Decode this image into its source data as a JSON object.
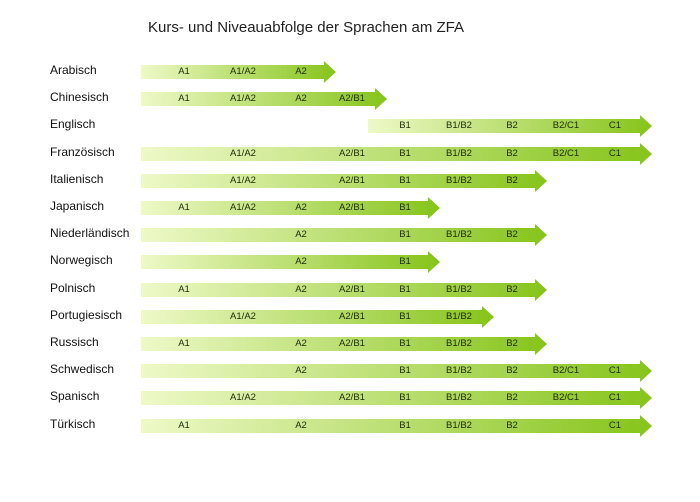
{
  "title": "Kurs- und Niveauabfolge der Sprachen am ZFA",
  "colors": {
    "arrow_light": "#eef9c8",
    "arrow_dark": "#86c41a",
    "text": "#1e2a0a"
  },
  "columns": [
    "A1",
    "A1/A2",
    "A2",
    "A2/B1",
    "B1",
    "B1/B2",
    "B2",
    "B2/C1",
    "C1"
  ],
  "languages": [
    {
      "name": "Arabisch",
      "levels": [
        "A1",
        "A1/A2",
        "A2"
      ]
    },
    {
      "name": "Chinesisch",
      "levels": [
        "A1",
        "A1/A2",
        "A2",
        "A2/B1"
      ]
    },
    {
      "name": "Englisch",
      "levels": [
        "B1",
        "B1/B2",
        "B2",
        "B2/C1",
        "C1"
      ]
    },
    {
      "name": "Französisch",
      "levels": [
        "A1/A2",
        "A2/B1",
        "B1",
        "B1/B2",
        "B2",
        "B2/C1",
        "C1"
      ]
    },
    {
      "name": "Italienisch",
      "levels": [
        "A1/A2",
        "A2/B1",
        "B1",
        "B1/B2",
        "B2"
      ]
    },
    {
      "name": "Japanisch",
      "levels": [
        "A1",
        "A1/A2",
        "A2",
        "A2/B1",
        "B1"
      ]
    },
    {
      "name": "Niederländisch",
      "levels": [
        "A2",
        "B1",
        "B1/B2",
        "B2"
      ]
    },
    {
      "name": "Norwegisch",
      "levels": [
        "A2",
        "B1"
      ]
    },
    {
      "name": "Polnisch",
      "levels": [
        "A1",
        "A2",
        "A2/B1",
        "B1",
        "B1/B2",
        "B2"
      ]
    },
    {
      "name": "Portugiesisch",
      "levels": [
        "A1/A2",
        "A2/B1",
        "B1",
        "B1/B2"
      ]
    },
    {
      "name": "Russisch",
      "levels": [
        "A1",
        "A2",
        "A2/B1",
        "B1",
        "B1/B2",
        "B2"
      ]
    },
    {
      "name": "Schwedisch",
      "levels": [
        "A2",
        "B1",
        "B1/B2",
        "B2",
        "B2/C1",
        "C1"
      ]
    },
    {
      "name": "Spanisch",
      "levels": [
        "A1/A2",
        "A2/B1",
        "B1",
        "B1/B2",
        "B2",
        "B2/C1",
        "C1"
      ]
    },
    {
      "name": "Türkisch",
      "levels": [
        "A1",
        "A2",
        "B1",
        "B1/B2",
        "B2",
        "C1"
      ]
    }
  ]
}
